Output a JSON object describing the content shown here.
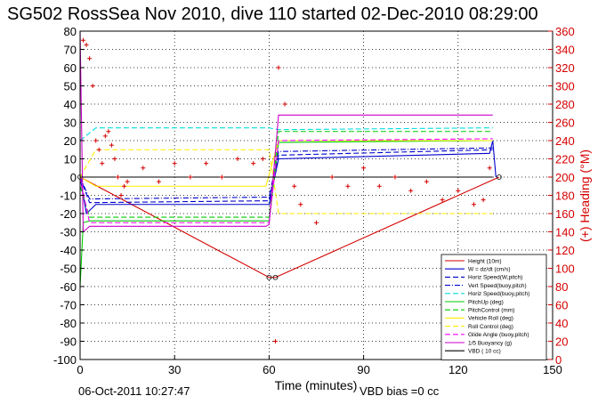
{
  "chart_data": {
    "type": "line",
    "title": "SG502 RossSea Nov 2010, dive 110 started 02-Dec-2010 08:29:00",
    "xlabel": "Time (minutes)",
    "ylabel": "",
    "y2label": "(+) Heading (°M)",
    "xlim": [
      0,
      150
    ],
    "ylim": [
      -100,
      80
    ],
    "y2lim": [
      0,
      360
    ],
    "x_ticks": [
      0,
      30,
      60,
      90,
      120,
      150
    ],
    "y_ticks": [
      -100,
      -90,
      -80,
      -70,
      -60,
      -50,
      -40,
      -30,
      -20,
      -10,
      0,
      10,
      20,
      30,
      40,
      50,
      60,
      70,
      80
    ],
    "y2_ticks": [
      0,
      20,
      40,
      60,
      80,
      100,
      120,
      140,
      160,
      180,
      200,
      220,
      240,
      260,
      280,
      300,
      320,
      340,
      360
    ],
    "grid": true,
    "legend_position": "bottom-right",
    "footer_left": "06-Oct-2011 10:27:47",
    "footer_right": "VBD bias =0 cc",
    "series": [
      {
        "name": "Height (10m)",
        "color": "#d40000",
        "style": "solid-markers",
        "axis": "left",
        "x": [
          0,
          60,
          62,
          133
        ],
        "y": [
          0,
          -55,
          -55,
          0
        ]
      },
      {
        "name": "W = dz/dt (cm/s)",
        "color": "#0000cc",
        "style": "solid",
        "axis": "left",
        "x": [
          0,
          2,
          5,
          59,
          60,
          63,
          130,
          131,
          132
        ],
        "y": [
          0,
          -20,
          -15,
          -15,
          -15,
          10,
          13,
          20,
          0
        ]
      },
      {
        "name": "Horiz Speed(W,pitch)",
        "color": "#0000cc",
        "style": "dashed",
        "axis": "left",
        "x": [
          0,
          3,
          59,
          60,
          63,
          131
        ],
        "y": [
          0,
          -14,
          -13,
          -13,
          12,
          15
        ]
      },
      {
        "name": "Vert Speed(buoy,pitch)",
        "color": "#0000cc",
        "style": "dashdot",
        "axis": "left",
        "x": [
          0,
          3,
          59,
          60,
          63,
          131
        ],
        "y": [
          0,
          -12,
          -11,
          -11,
          14,
          16
        ]
      },
      {
        "name": "Horiz Speed(buoy,pitch)",
        "color": "#00dddd",
        "style": "dashed",
        "axis": "left",
        "x": [
          0,
          5,
          59,
          60,
          63,
          131
        ],
        "y": [
          20,
          27,
          27,
          27,
          26,
          27
        ]
      },
      {
        "name": "PitchUp (deg)",
        "color": "#00cc00",
        "style": "solid",
        "axis": "left",
        "x": [
          0,
          1,
          3,
          59,
          60,
          63,
          131
        ],
        "y": [
          -60,
          -25,
          -24,
          -24,
          -24,
          19,
          20
        ]
      },
      {
        "name": "PitchControl (mm)",
        "color": "#00cc00",
        "style": "dashed",
        "axis": "left",
        "x": [
          0,
          3,
          59,
          60,
          63,
          131
        ],
        "y": [
          -5,
          -22,
          -22,
          -22,
          25,
          25
        ]
      },
      {
        "name": "Vehicle Roll (deg)",
        "color": "#ffee00",
        "style": "solid",
        "axis": "left",
        "x": [
          0,
          5,
          30,
          59,
          63,
          100,
          131
        ],
        "y": [
          0,
          -5,
          -5,
          -5,
          20,
          20,
          20
        ]
      },
      {
        "name": "Roll Control (deg)",
        "color": "#ffee00",
        "style": "dashed",
        "axis": "left",
        "x": [
          0,
          5,
          59,
          60,
          63,
          131
        ],
        "y": [
          0,
          15,
          15,
          15,
          -20,
          -20
        ]
      },
      {
        "name": "Glide Angle (buoy,pitch)",
        "color": "#ff00ff",
        "style": "dashed",
        "axis": "left",
        "x": [
          0,
          3,
          59,
          60,
          63,
          131
        ],
        "y": [
          0,
          -25,
          -25,
          -25,
          20,
          21
        ]
      },
      {
        "name": "1/5 Buoyancy (g)",
        "color": "#cc00cc",
        "style": "solid",
        "axis": "left",
        "x": [
          0,
          1,
          3,
          59,
          60,
          63,
          131
        ],
        "y": [
          80,
          -30,
          -27,
          -27,
          -26,
          34,
          34
        ]
      },
      {
        "name": "VBD ( 10 cc)",
        "color": "#000000",
        "style": "solid",
        "axis": "left",
        "x": [
          0,
          131
        ],
        "y": [
          0,
          0
        ]
      },
      {
        "name": "Heading",
        "color": "#d40000",
        "style": "plus-markers",
        "axis": "right",
        "x": [
          1,
          2,
          3,
          4,
          5,
          6,
          7,
          8,
          9,
          10,
          11,
          12,
          13,
          14,
          15,
          20,
          25,
          30,
          35,
          40,
          45,
          50,
          55,
          58,
          62,
          63,
          65,
          68,
          70,
          75,
          80,
          85,
          90,
          95,
          100,
          105,
          110,
          115,
          120,
          125,
          128,
          130
        ],
        "y": [
          350,
          345,
          330,
          300,
          240,
          230,
          215,
          245,
          250,
          235,
          220,
          200,
          180,
          190,
          195,
          210,
          195,
          215,
          200,
          215,
          200,
          220,
          215,
          220,
          20,
          320,
          280,
          190,
          170,
          150,
          200,
          190,
          210,
          190,
          200,
          185,
          195,
          175,
          185,
          170,
          175,
          210
        ]
      }
    ]
  }
}
